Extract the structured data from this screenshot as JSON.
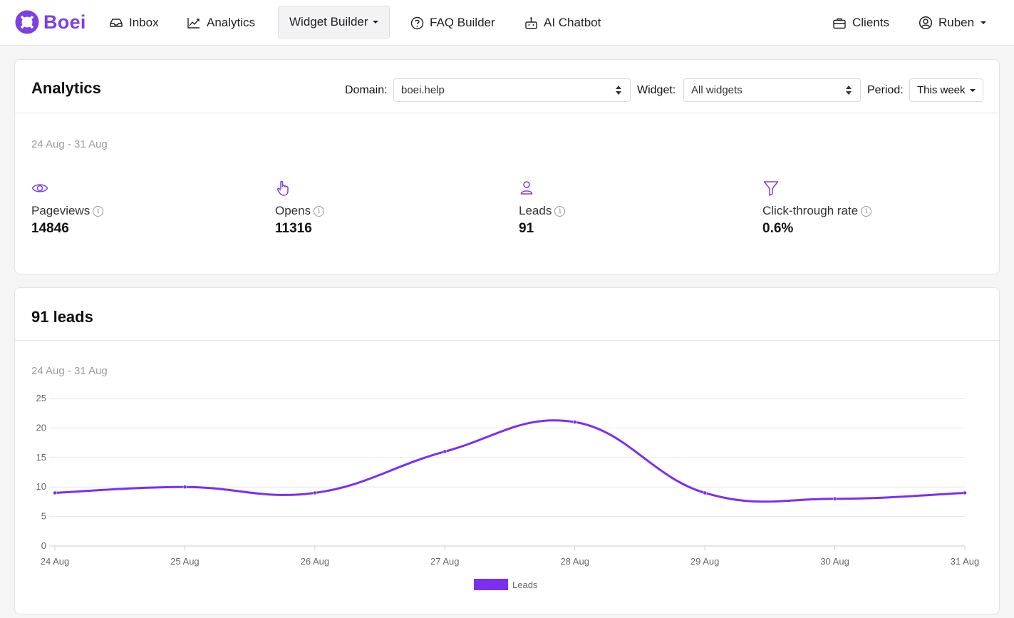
{
  "brand": {
    "name": "Boei",
    "color": "#7b3fe4"
  },
  "nav": {
    "inbox": "Inbox",
    "analytics": "Analytics",
    "widget_builder": "Widget Builder",
    "faq_builder": "FAQ Builder",
    "ai_chatbot": "AI Chatbot",
    "clients": "Clients",
    "user": "Ruben"
  },
  "analytics_card": {
    "title": "Analytics",
    "domain_label": "Domain:",
    "domain_value": "boei.help",
    "widget_label": "Widget:",
    "widget_value": "All widgets",
    "period_label": "Period:",
    "period_value": "This week",
    "date_range": "24 Aug - 31 Aug",
    "stats": [
      {
        "label": "Pageviews",
        "value": "14846",
        "icon": "eye-icon"
      },
      {
        "label": "Opens",
        "value": "11316",
        "icon": "pointer-hand-icon"
      },
      {
        "label": "Leads",
        "value": "91",
        "icon": "user-icon"
      },
      {
        "label": "Click-through rate",
        "value": "0.6%",
        "icon": "funnel-icon"
      }
    ]
  },
  "leads_card": {
    "title": "91 leads",
    "date_range": "24 Aug - 31 Aug"
  },
  "chart_data": {
    "type": "line",
    "categories": [
      "24 Aug",
      "25 Aug",
      "26 Aug",
      "27 Aug",
      "28 Aug",
      "29 Aug",
      "30 Aug",
      "31 Aug"
    ],
    "series": [
      {
        "name": "Leads",
        "values": [
          9,
          10,
          9,
          16,
          21,
          9,
          8,
          9
        ],
        "color": "#7b2ff0"
      }
    ],
    "yticks": [
      0,
      5,
      10,
      15,
      20,
      25
    ],
    "ylim": [
      0,
      25
    ],
    "grid": true,
    "legend": "bottom"
  }
}
